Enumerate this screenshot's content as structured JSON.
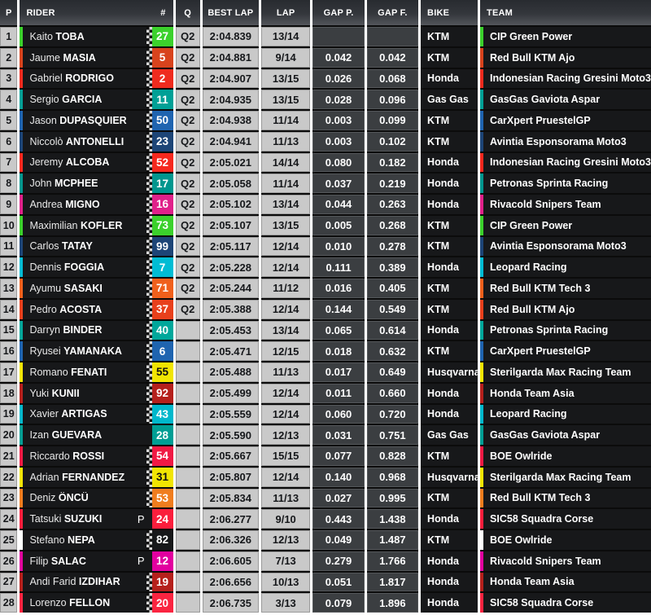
{
  "header": {
    "p": "P",
    "rider": "RIDER",
    "num": "#",
    "q": "Q",
    "best_lap": "BEST LAP",
    "lap": "LAP",
    "gap_p": "GAP P.",
    "gap_f": "GAP F.",
    "bike": "BIKE",
    "team": "TEAM"
  },
  "labels": {
    "p_marker": "P"
  },
  "colors": {
    "header_bg": "#34373c",
    "light_cell": "#c9c9c9",
    "dark_cell": "#17181a",
    "gap_cell": "#3b3e41",
    "row_gap": "#0b0b0b",
    "column_gap": "#ffffff"
  },
  "rows": [
    {
      "pos": "1",
      "first": "Kaito",
      "last": "TOBA",
      "num": "27",
      "bar": "#3bd12c",
      "box": "#3bd12c",
      "num_color": "#ffffff",
      "checker": true,
      "p_flag": false,
      "q": "Q2",
      "best_lap": "2:04.839",
      "lap": "13/14",
      "gap_p": "",
      "gap_f": "",
      "bike": "KTM",
      "team": "CIP Green Power"
    },
    {
      "pos": "2",
      "first": "Jaume",
      "last": "MASIA",
      "num": "5",
      "bar": "#d8431d",
      "box": "#d8431d",
      "num_color": "#ffffff",
      "checker": true,
      "p_flag": false,
      "q": "Q2",
      "best_lap": "2:04.881",
      "lap": "9/14",
      "gap_p": "0.042",
      "gap_f": "0.042",
      "bike": "KTM",
      "team": "Red Bull KTM Ajo"
    },
    {
      "pos": "3",
      "first": "Gabriel",
      "last": "RODRIGO",
      "num": "2",
      "bar": "#ef2b1e",
      "box": "#ef2b1e",
      "num_color": "#ffffff",
      "checker": true,
      "p_flag": false,
      "q": "Q2",
      "best_lap": "2:04.907",
      "lap": "13/15",
      "gap_p": "0.026",
      "gap_f": "0.068",
      "bike": "Honda",
      "team": "Indonesian Racing Gresini Moto3"
    },
    {
      "pos": "4",
      "first": "Sergio",
      "last": "GARCIA",
      "num": "11",
      "bar": "#00a096",
      "box": "#00a096",
      "num_color": "#ffffff",
      "checker": true,
      "p_flag": false,
      "q": "Q2",
      "best_lap": "2:04.935",
      "lap": "13/15",
      "gap_p": "0.028",
      "gap_f": "0.096",
      "bike": "Gas Gas",
      "team": "GasGas Gaviota Aspar"
    },
    {
      "pos": "5",
      "first": "Jason",
      "last": "DUPASQUIER",
      "num": "50",
      "bar": "#1f64b0",
      "box": "#1f64b0",
      "num_color": "#ffffff",
      "checker": true,
      "p_flag": false,
      "q": "Q2",
      "best_lap": "2:04.938",
      "lap": "11/14",
      "gap_p": "0.003",
      "gap_f": "0.099",
      "bike": "KTM",
      "team": "CarXpert PruestelGP"
    },
    {
      "pos": "6",
      "first": "Niccolò",
      "last": "ANTONELLI",
      "num": "23",
      "bar": "#1d4577",
      "box": "#1d4577",
      "num_color": "#ffffff",
      "checker": true,
      "p_flag": false,
      "q": "Q2",
      "best_lap": "2:04.941",
      "lap": "11/13",
      "gap_p": "0.003",
      "gap_f": "0.102",
      "bike": "KTM",
      "team": "Avintia Esponsorama Moto3"
    },
    {
      "pos": "7",
      "first": "Jeremy",
      "last": "ALCOBA",
      "num": "52",
      "bar": "#f5281e",
      "box": "#f5281e",
      "num_color": "#ffffff",
      "checker": true,
      "p_flag": false,
      "q": "Q2",
      "best_lap": "2:05.021",
      "lap": "14/14",
      "gap_p": "0.080",
      "gap_f": "0.182",
      "bike": "Honda",
      "team": "Indonesian Racing Gresini Moto3"
    },
    {
      "pos": "8",
      "first": "John",
      "last": "MCPHEE",
      "num": "17",
      "bar": "#00968e",
      "box": "#00968e",
      "num_color": "#ffffff",
      "checker": true,
      "p_flag": false,
      "q": "Q2",
      "best_lap": "2:05.058",
      "lap": "11/14",
      "gap_p": "0.037",
      "gap_f": "0.219",
      "bike": "Honda",
      "team": "Petronas Sprinta Racing"
    },
    {
      "pos": "9",
      "first": "Andrea",
      "last": "MIGNO",
      "num": "16",
      "bar": "#e0218a",
      "box": "#e0218a",
      "num_color": "#ffffff",
      "checker": true,
      "p_flag": false,
      "q": "Q2",
      "best_lap": "2:05.102",
      "lap": "13/14",
      "gap_p": "0.044",
      "gap_f": "0.263",
      "bike": "Honda",
      "team": "Rivacold Snipers Team"
    },
    {
      "pos": "10",
      "first": "Maximilian",
      "last": "KOFLER",
      "num": "73",
      "bar": "#3bd12c",
      "box": "#3bd12c",
      "num_color": "#ffffff",
      "checker": true,
      "p_flag": false,
      "q": "Q2",
      "best_lap": "2:05.107",
      "lap": "13/15",
      "gap_p": "0.005",
      "gap_f": "0.268",
      "bike": "KTM",
      "team": "CIP Green Power"
    },
    {
      "pos": "11",
      "first": "Carlos",
      "last": "TATAY",
      "num": "99",
      "bar": "#1d4577",
      "box": "#1d4577",
      "num_color": "#ffffff",
      "checker": true,
      "p_flag": false,
      "q": "Q2",
      "best_lap": "2:05.117",
      "lap": "12/14",
      "gap_p": "0.010",
      "gap_f": "0.278",
      "bike": "KTM",
      "team": "Avintia Esponsorama Moto3"
    },
    {
      "pos": "12",
      "first": "Dennis",
      "last": "FOGGIA",
      "num": "7",
      "bar": "#00bcd4",
      "box": "#00bcd4",
      "num_color": "#ffffff",
      "checker": true,
      "p_flag": false,
      "q": "Q2",
      "best_lap": "2:05.228",
      "lap": "12/14",
      "gap_p": "0.111",
      "gap_f": "0.389",
      "bike": "Honda",
      "team": "Leopard Racing"
    },
    {
      "pos": "13",
      "first": "Ayumu",
      "last": "SASAKI",
      "num": "71",
      "bar": "#f0601c",
      "box": "#f0601c",
      "num_color": "#ffffff",
      "checker": true,
      "p_flag": false,
      "q": "Q2",
      "best_lap": "2:05.244",
      "lap": "11/12",
      "gap_p": "0.016",
      "gap_f": "0.405",
      "bike": "KTM",
      "team": "Red Bull KTM Tech 3"
    },
    {
      "pos": "14",
      "first": "Pedro",
      "last": "ACOSTA",
      "num": "37",
      "bar": "#e8401c",
      "box": "#e8401c",
      "num_color": "#ffffff",
      "checker": true,
      "p_flag": false,
      "q": "Q2",
      "best_lap": "2:05.388",
      "lap": "12/14",
      "gap_p": "0.144",
      "gap_f": "0.549",
      "bike": "KTM",
      "team": "Red Bull KTM Ajo"
    },
    {
      "pos": "15",
      "first": "Darryn",
      "last": "BINDER",
      "num": "40",
      "bar": "#00a79b",
      "box": "#00a79b",
      "num_color": "#ffffff",
      "checker": true,
      "p_flag": false,
      "q": "",
      "best_lap": "2:05.453",
      "lap": "13/14",
      "gap_p": "0.065",
      "gap_f": "0.614",
      "bike": "Honda",
      "team": "Petronas Sprinta Racing"
    },
    {
      "pos": "16",
      "first": "Ryusei",
      "last": "YAMANAKA",
      "num": "6",
      "bar": "#1f64b0",
      "box": "#1f64b0",
      "num_color": "#ffffff",
      "checker": true,
      "p_flag": false,
      "q": "",
      "best_lap": "2:05.471",
      "lap": "12/15",
      "gap_p": "0.018",
      "gap_f": "0.632",
      "bike": "KTM",
      "team": "CarXpert PruestelGP"
    },
    {
      "pos": "17",
      "first": "Romano",
      "last": "FENATI",
      "num": "55",
      "bar": "#f1e502",
      "box": "#f1e502",
      "num_color": "#111111",
      "checker": true,
      "p_flag": false,
      "q": "",
      "best_lap": "2:05.488",
      "lap": "11/13",
      "gap_p": "0.017",
      "gap_f": "0.649",
      "bike": "Husqvarna",
      "team": "Sterilgarda Max Racing Team"
    },
    {
      "pos": "18",
      "first": "Yuki",
      "last": "KUNII",
      "num": "92",
      "bar": "#b5201c",
      "box": "#b5201c",
      "num_color": "#ffffff",
      "checker": true,
      "p_flag": false,
      "q": "",
      "best_lap": "2:05.499",
      "lap": "12/14",
      "gap_p": "0.011",
      "gap_f": "0.660",
      "bike": "Honda",
      "team": "Honda Team Asia"
    },
    {
      "pos": "19",
      "first": "Xavier",
      "last": "ARTIGAS",
      "num": "43",
      "bar": "#00b8cc",
      "box": "#00b8cc",
      "num_color": "#ffffff",
      "checker": true,
      "p_flag": false,
      "q": "",
      "best_lap": "2:05.559",
      "lap": "12/14",
      "gap_p": "0.060",
      "gap_f": "0.720",
      "bike": "Honda",
      "team": "Leopard Racing"
    },
    {
      "pos": "20",
      "first": "Izan",
      "last": "GUEVARA",
      "num": "28",
      "bar": "#009e94",
      "box": "#009e94",
      "num_color": "#ffffff",
      "checker": false,
      "p_flag": false,
      "q": "",
      "best_lap": "2:05.590",
      "lap": "12/13",
      "gap_p": "0.031",
      "gap_f": "0.751",
      "bike": "Gas Gas",
      "team": "GasGas Gaviota Aspar"
    },
    {
      "pos": "21",
      "first": "Riccardo",
      "last": "ROSSI",
      "num": "54",
      "bar": "#f01a44",
      "box": "#f01a44",
      "num_color": "#ffffff",
      "checker": true,
      "p_flag": false,
      "q": "",
      "best_lap": "2:05.667",
      "lap": "15/15",
      "gap_p": "0.077",
      "gap_f": "0.828",
      "bike": "KTM",
      "team": "BOE Owlride"
    },
    {
      "pos": "22",
      "first": "Adrian",
      "last": "FERNANDEZ",
      "num": "31",
      "bar": "#f1e502",
      "box": "#f1e502",
      "num_color": "#111111",
      "checker": true,
      "p_flag": false,
      "q": "",
      "best_lap": "2:05.807",
      "lap": "12/14",
      "gap_p": "0.140",
      "gap_f": "0.968",
      "bike": "Husqvarna",
      "team": "Sterilgarda Max Racing Team"
    },
    {
      "pos": "23",
      "first": "Deniz",
      "last": "ÖNCÜ",
      "num": "53",
      "bar": "#f07d1e",
      "box": "#f07d1e",
      "num_color": "#ffffff",
      "checker": true,
      "p_flag": false,
      "q": "",
      "best_lap": "2:05.834",
      "lap": "11/13",
      "gap_p": "0.027",
      "gap_f": "0.995",
      "bike": "KTM",
      "team": "Red Bull KTM Tech 3"
    },
    {
      "pos": "24",
      "first": "Tatsuki",
      "last": "SUZUKI",
      "num": "24",
      "bar": "#fa1e3c",
      "box": "#fa1e3c",
      "num_color": "#ffffff",
      "checker": false,
      "p_flag": true,
      "q": "",
      "best_lap": "2:06.277",
      "lap": "9/10",
      "gap_p": "0.443",
      "gap_f": "1.438",
      "bike": "Honda",
      "team": "SIC58 Squadra Corse"
    },
    {
      "pos": "25",
      "first": "Stefano",
      "last": "NEPA",
      "num": "82",
      "bar": "#ffffff",
      "box": "#17181a",
      "num_color": "#ffffff",
      "checker": true,
      "p_flag": false,
      "q": "",
      "best_lap": "2:06.326",
      "lap": "12/13",
      "gap_p": "0.049",
      "gap_f": "1.487",
      "bike": "KTM",
      "team": "BOE Owlride"
    },
    {
      "pos": "26",
      "first": "Filip",
      "last": "SALAC",
      "num": "12",
      "bar": "#e2009f",
      "box": "#e2009f",
      "num_color": "#ffffff",
      "checker": false,
      "p_flag": true,
      "q": "",
      "best_lap": "2:06.605",
      "lap": "7/13",
      "gap_p": "0.279",
      "gap_f": "1.766",
      "bike": "Honda",
      "team": "Rivacold Snipers Team"
    },
    {
      "pos": "27",
      "first": "Andi Farid",
      "last": "IZDIHAR",
      "num": "19",
      "bar": "#b5201c",
      "box": "#b5201c",
      "num_color": "#ffffff",
      "checker": true,
      "p_flag": false,
      "q": "",
      "best_lap": "2:06.656",
      "lap": "10/13",
      "gap_p": "0.051",
      "gap_f": "1.817",
      "bike": "Honda",
      "team": "Honda Team Asia"
    },
    {
      "pos": "28",
      "first": "Lorenzo",
      "last": "FELLON",
      "num": "20",
      "bar": "#fa2440",
      "box": "#fa2440",
      "num_color": "#ffffff",
      "checker": true,
      "p_flag": false,
      "q": "",
      "best_lap": "2:06.735",
      "lap": "3/13",
      "gap_p": "0.079",
      "gap_f": "1.896",
      "bike": "Honda",
      "team": "SIC58 Squadra Corse"
    }
  ]
}
